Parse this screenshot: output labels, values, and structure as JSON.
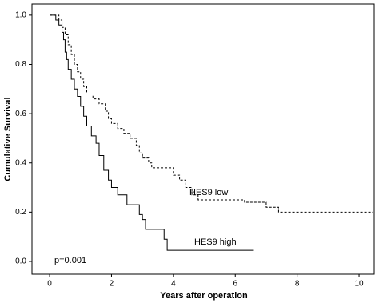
{
  "chart_data": {
    "type": "line",
    "step": "post",
    "x_label": "Years after operation",
    "y_label": "Cumulative Survival",
    "xlim": [
      -0.57,
      10.49
    ],
    "ylim": [
      -0.052,
      1.045
    ],
    "xticks": [
      0,
      2,
      4,
      6,
      8,
      10
    ],
    "yticks": [
      {
        "value": 0,
        "label": "0.0"
      },
      {
        "value": 0.2,
        "label": "0.2"
      },
      {
        "value": 0.4,
        "label": "0.4"
      },
      {
        "value": 0.6,
        "label": "0.6"
      },
      {
        "value": 0.8,
        "label": "0.8"
      },
      {
        "value": 1,
        "label": "1.0"
      }
    ],
    "series": [
      {
        "name": "HES9 low",
        "color": "#000000",
        "style": "dashed",
        "x": [
          0,
          0.3,
          0.4,
          0.5,
          0.6,
          0.7,
          0.8,
          0.9,
          1.0,
          1.1,
          1.2,
          1.4,
          1.6,
          1.8,
          1.9,
          2.0,
          2.2,
          2.4,
          2.6,
          2.8,
          2.9,
          3.0,
          3.2,
          3.3,
          4.0,
          4.2,
          4.4,
          4.6,
          4.8,
          6.3,
          7.0,
          7.4,
          10.45
        ],
        "values": [
          1.0,
          0.98,
          0.95,
          0.92,
          0.88,
          0.84,
          0.8,
          0.77,
          0.74,
          0.71,
          0.68,
          0.66,
          0.64,
          0.61,
          0.58,
          0.56,
          0.54,
          0.52,
          0.5,
          0.47,
          0.44,
          0.42,
          0.4,
          0.38,
          0.35,
          0.33,
          0.3,
          0.27,
          0.25,
          0.24,
          0.22,
          0.2,
          0.2
        ]
      },
      {
        "name": "HES9 high",
        "color": "#000000",
        "style": "solid",
        "x": [
          0,
          0.2,
          0.3,
          0.4,
          0.45,
          0.5,
          0.55,
          0.6,
          0.7,
          0.8,
          0.9,
          1.0,
          1.1,
          1.2,
          1.35,
          1.5,
          1.6,
          1.75,
          1.9,
          2.0,
          2.2,
          2.5,
          2.9,
          3.0,
          3.1,
          3.7,
          3.8,
          6.6
        ],
        "values": [
          1.0,
          0.98,
          0.96,
          0.93,
          0.9,
          0.85,
          0.82,
          0.78,
          0.74,
          0.7,
          0.67,
          0.63,
          0.59,
          0.55,
          0.51,
          0.48,
          0.43,
          0.37,
          0.33,
          0.3,
          0.27,
          0.23,
          0.19,
          0.17,
          0.13,
          0.09,
          0.045,
          0.045
        ]
      }
    ],
    "annotations": [
      "p=0.001"
    ]
  }
}
